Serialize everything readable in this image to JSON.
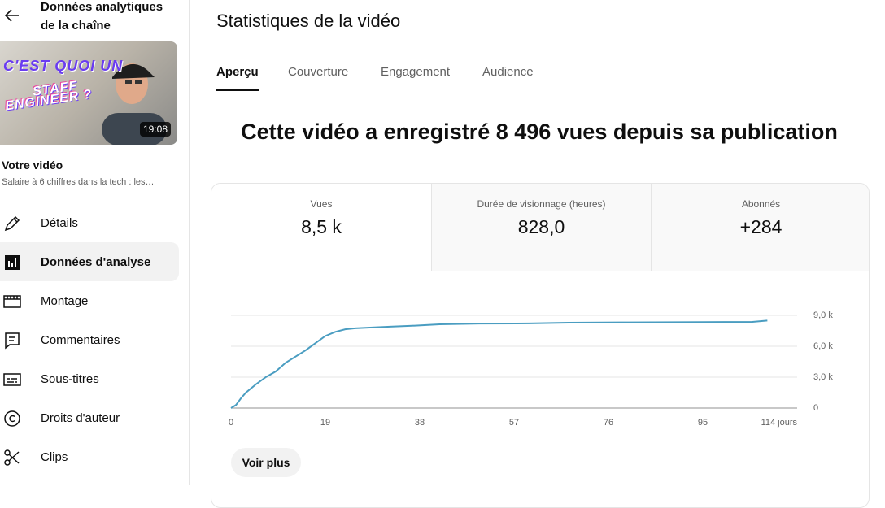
{
  "sidebar": {
    "back_title": "Données analytiques de la chaîne",
    "thumbnail": {
      "line1": "C'EST QUOI UN",
      "line2": "STAFF",
      "line3": "ENGINEER ?",
      "duration": "19:08"
    },
    "video_label": "Votre vidéo",
    "video_title": "Salaire à 6 chiffres dans la tech : les…",
    "nav": [
      "Détails",
      "Données d'analyse",
      "Montage",
      "Commentaires",
      "Sous-titres",
      "Droits d'auteur",
      "Clips"
    ],
    "active_nav": 1
  },
  "main": {
    "title": "Statistiques de la vidéo",
    "tabs": [
      "Aperçu",
      "Couverture",
      "Engagement",
      "Audience"
    ],
    "active_tab": 0,
    "headline": "Cette vidéo a enregistré 8 496 vues depuis sa publication",
    "metrics": [
      {
        "label": "Vues",
        "value": "8,5 k"
      },
      {
        "label": "Durée de visionnage (heures)",
        "value": "828,0"
      },
      {
        "label": "Abonnés",
        "value": "+284"
      }
    ],
    "active_metric": 0,
    "button": "Voir plus"
  },
  "chart_data": {
    "type": "line",
    "x": [
      0,
      1,
      2,
      3,
      5,
      7,
      9,
      11,
      13,
      15,
      17,
      19,
      21,
      23,
      25,
      28,
      32,
      36,
      42,
      50,
      60,
      68,
      80,
      95,
      105,
      108
    ],
    "values": [
      0,
      300,
      950,
      1500,
      2300,
      3000,
      3550,
      4400,
      5000,
      5600,
      6300,
      7000,
      7400,
      7650,
      7750,
      7820,
      7900,
      7980,
      8130,
      8200,
      8220,
      8290,
      8320,
      8350,
      8370,
      8496
    ],
    "color": "#4a9dc1",
    "xlim": [
      0,
      114
    ],
    "xticks": [
      0,
      19,
      38,
      57,
      76,
      95,
      {
        "value": 114,
        "label": "114 jours"
      }
    ],
    "ylim": [
      0,
      9000
    ],
    "yticks": [
      0,
      {
        "value": 3000,
        "label": "3,0 k"
      },
      {
        "value": 6000,
        "label": "6,0 k"
      },
      {
        "value": 9000,
        "label": "9,0 k"
      }
    ],
    "grid": true
  }
}
